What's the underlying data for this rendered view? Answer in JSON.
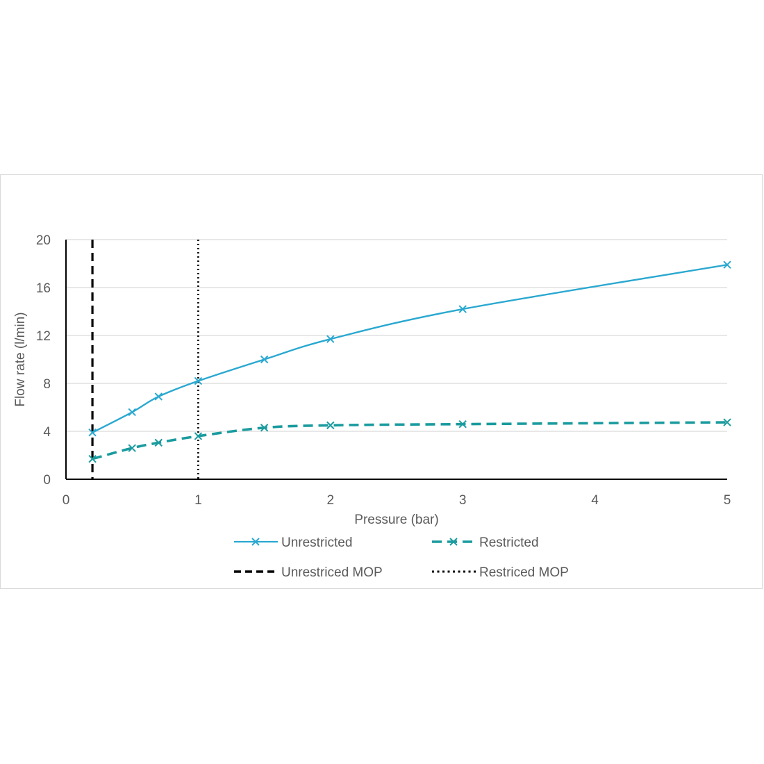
{
  "chart_data": {
    "type": "line",
    "xlabel": "Pressure (bar)",
    "ylabel": "Flow rate (l/min)",
    "xlim": [
      0,
      5
    ],
    "ylim": [
      0,
      20
    ],
    "x_ticks": [
      0,
      1,
      2,
      3,
      4,
      5
    ],
    "y_ticks": [
      0,
      4,
      8,
      12,
      16,
      20
    ],
    "grid": "horizontal",
    "legend_position": "bottom",
    "series": [
      {
        "name": "Unrestricted",
        "color": "#2aa8d0",
        "line_style": "solid",
        "marker": "x",
        "x": [
          0.2,
          0.5,
          0.7,
          1,
          1.5,
          2,
          3,
          5
        ],
        "y": [
          3.9,
          5.6,
          6.9,
          8.2,
          10.0,
          11.7,
          14.2,
          17.9
        ]
      },
      {
        "name": "Restricted",
        "color": "#1a9b9e",
        "line_style": "dashed",
        "marker": "x",
        "x": [
          0.2,
          0.5,
          0.7,
          1,
          1.5,
          2,
          3,
          5
        ],
        "y": [
          1.7,
          2.6,
          3.05,
          3.6,
          4.3,
          4.5,
          4.6,
          4.75
        ]
      }
    ],
    "reference_lines": [
      {
        "name": "Unrestriced MOP",
        "x": 0.2,
        "color": "#000000",
        "line_style": "dashed"
      },
      {
        "name": "Restriced MOP",
        "x": 1,
        "color": "#000000",
        "line_style": "dotted"
      }
    ]
  }
}
